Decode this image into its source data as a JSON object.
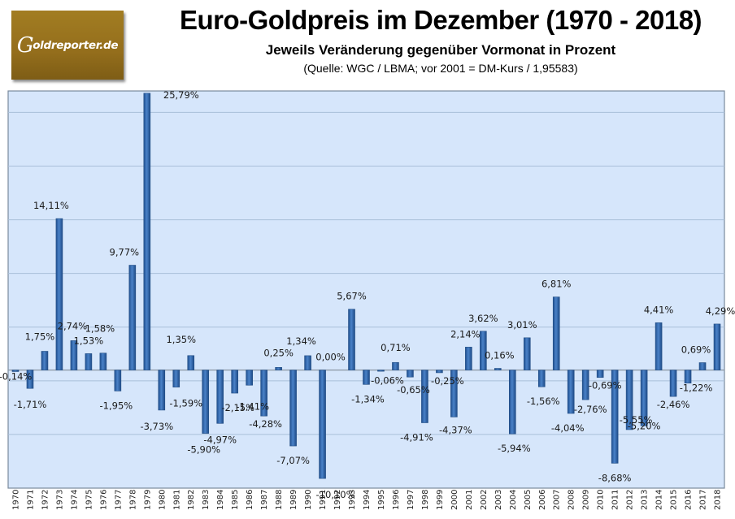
{
  "logo": {
    "initial": "G",
    "text": "oldreporter.de",
    "full": "Goldreporter.de"
  },
  "colors": {
    "plot_bg": "#d6e6fb",
    "bar": "#2f65ab",
    "bar_light": "#5b8fd0",
    "gridline": "#a9bfd9",
    "axis": "#7a8a9c"
  },
  "chart_data": {
    "type": "bar",
    "title": "Euro-Goldpreis im Dezember (1970 - 2018)",
    "subtitle": "Jeweils Veränderung gegenüber Vormonat in Prozent",
    "note": "(Quelle: WGC / LBMA; vor 2001 = DM-Kurs / 1,95583)",
    "xlabel": "",
    "ylabel": "",
    "ylim": [
      -11,
      26
    ],
    "gridline_step": 5,
    "grid": true,
    "legend": "none",
    "categories": [
      "1970",
      "1971",
      "1972",
      "1973",
      "1974",
      "1975",
      "1976",
      "1977",
      "1978",
      "1979",
      "1980",
      "1981",
      "1982",
      "1983",
      "1984",
      "1985",
      "1986",
      "1987",
      "1988",
      "1989",
      "1990",
      "1991",
      "1992",
      "1993",
      "1994",
      "1995",
      "1996",
      "1997",
      "1998",
      "1999",
      "2000",
      "2001",
      "2002",
      "2003",
      "2004",
      "2005",
      "2006",
      "2007",
      "2008",
      "2009",
      "2010",
      "2011",
      "2012",
      "2013",
      "2014",
      "2015",
      "2016",
      "2017",
      "2018"
    ],
    "values": [
      -0.14,
      -1.71,
      1.75,
      14.11,
      2.74,
      1.53,
      1.58,
      -1.95,
      9.77,
      25.79,
      -3.73,
      -1.59,
      1.35,
      -5.9,
      -4.97,
      -2.15,
      -1.41,
      -4.28,
      0.25,
      -7.07,
      1.34,
      -10.1,
      0.0,
      5.67,
      -1.34,
      -0.06,
      0.71,
      -0.65,
      -4.91,
      -0.25,
      -4.37,
      2.14,
      3.62,
      0.16,
      -5.94,
      3.01,
      -1.56,
      6.81,
      -4.04,
      -2.76,
      -0.69,
      -8.68,
      -5.55,
      -5.2,
      4.41,
      -2.46,
      -1.22,
      0.69,
      4.29
    ],
    "data_labels": [
      "-0,14%",
      "-1,71%",
      "1,75%",
      "14,11%",
      "2,74%",
      "1,53%",
      "1,58%",
      "-1,95%",
      "9,77%",
      "25,79%",
      "-3,73%",
      "-1,59%",
      "1,35%",
      "-5,90%",
      "-4,97%",
      "-2,15%",
      "-1,41%",
      "-4,28%",
      "0,25%",
      "-7,07%",
      "1,34%",
      "-10,10%",
      "0,00%",
      "5,67%",
      "-1,34%",
      "-0,06%",
      "0,71%",
      "-0,65%",
      "-4,91%",
      "-0,25%",
      "-4,37%",
      "2,14%",
      "3,62%",
      "0,16%",
      "-5,94%",
      "3,01%",
      "-1,56%",
      "6,81%",
      "-4,04%",
      "-2,76%",
      "-0,69%",
      "-8,68%",
      "-5,55%",
      "-5,20%",
      "4,41%",
      "-2,46%",
      "-1,22%",
      "0,69%",
      "4,29%"
    ]
  }
}
